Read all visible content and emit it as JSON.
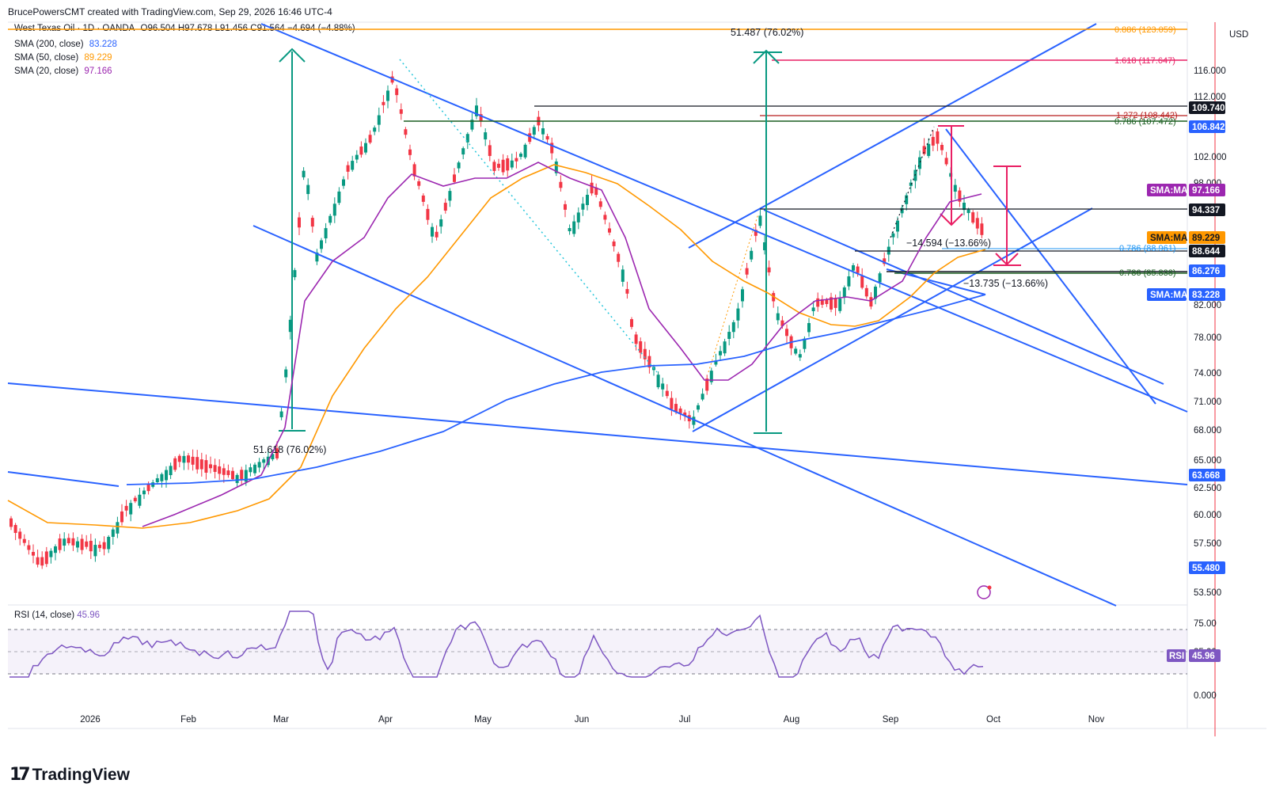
{
  "credit": "BrucePowersCMT created with TradingView.com, Sep 29, 2026 16:46 UTC-4",
  "legend": {
    "symbol": "West Texas Oil · 1D · OANDA",
    "ohlc": "O96.504 H97.678 L91.456 C91.564 −4.694 (−4.88%)",
    "sma200_label": "SMA (200, close)",
    "sma200_value": "83.228",
    "sma50_label": "SMA (50, close)",
    "sma50_value": "89.229",
    "sma20_label": "SMA (20, close)",
    "sma20_value": "97.166"
  },
  "currency": "USD",
  "price_axis": {
    "ticks": [
      "116.000",
      "112.000",
      "102.000",
      "98.000",
      "82.000",
      "78.000",
      "74.000",
      "71.000",
      "68.000",
      "65.000",
      "62.500",
      "60.000",
      "57.500",
      "53.500"
    ],
    "tags": [
      {
        "text": "109.740",
        "bg": "#131722",
        "fg": "#ffffff"
      },
      {
        "text": "106.842",
        "bg": "#2962ff",
        "fg": "#ffffff"
      },
      {
        "text": "SMA:MA",
        "bg": "#9c27b0",
        "fg": "#ffffff",
        "value": "97.166"
      },
      {
        "text": "94.337",
        "bg": "#131722",
        "fg": "#ffffff"
      },
      {
        "text": "SMA:MA",
        "bg": "#ff9800",
        "fg": "#131722",
        "value": "89.229"
      },
      {
        "text": "88.644",
        "bg": "#131722",
        "fg": "#ffffff"
      },
      {
        "text": "86.276",
        "bg": "#2962ff",
        "fg": "#ffffff"
      },
      {
        "text": "SMA:MA",
        "bg": "#2962ff",
        "fg": "#ffffff",
        "value": "83.228"
      },
      {
        "text": "63.668",
        "bg": "#2962ff",
        "fg": "#ffffff"
      },
      {
        "text": "55.480",
        "bg": "#2962ff",
        "fg": "#ffffff"
      }
    ]
  },
  "time_axis": [
    "2026",
    "Feb",
    "Mar",
    "Apr",
    "May",
    "Jun",
    "Jul",
    "Aug",
    "Sep",
    "Oct",
    "Nov"
  ],
  "annotations": {
    "fib_886": "0.886 (123.059)",
    "fib_1618": "1.618 (117.647)",
    "fib_1272": "1.272 (108.442)",
    "fib_786_top": "0.786 (107.472)",
    "fib_786_mid": "0.786 (88.961)",
    "fib_786_low": "0.786 (85.838)",
    "measure_top": "51.487 (76.02%)",
    "measure_left": "51.618 (76.02%)",
    "measure_down1": "−14.594 (−13.66%)",
    "measure_down2": "−13.735 (−13.66%)"
  },
  "rsi": {
    "label": "RSI (14, close)",
    "value": "45.96",
    "ticks": [
      "75.00",
      "25.00",
      "0.000"
    ],
    "tag": "RSI"
  },
  "brand": "TradingView",
  "colors": {
    "up": "#089981",
    "down": "#f23645",
    "sma20": "#9c27b0",
    "sma50": "#ff9800",
    "sma200": "#2962ff",
    "trend": "#2962ff",
    "measure": "#089981",
    "projection": "#e91e63"
  }
}
